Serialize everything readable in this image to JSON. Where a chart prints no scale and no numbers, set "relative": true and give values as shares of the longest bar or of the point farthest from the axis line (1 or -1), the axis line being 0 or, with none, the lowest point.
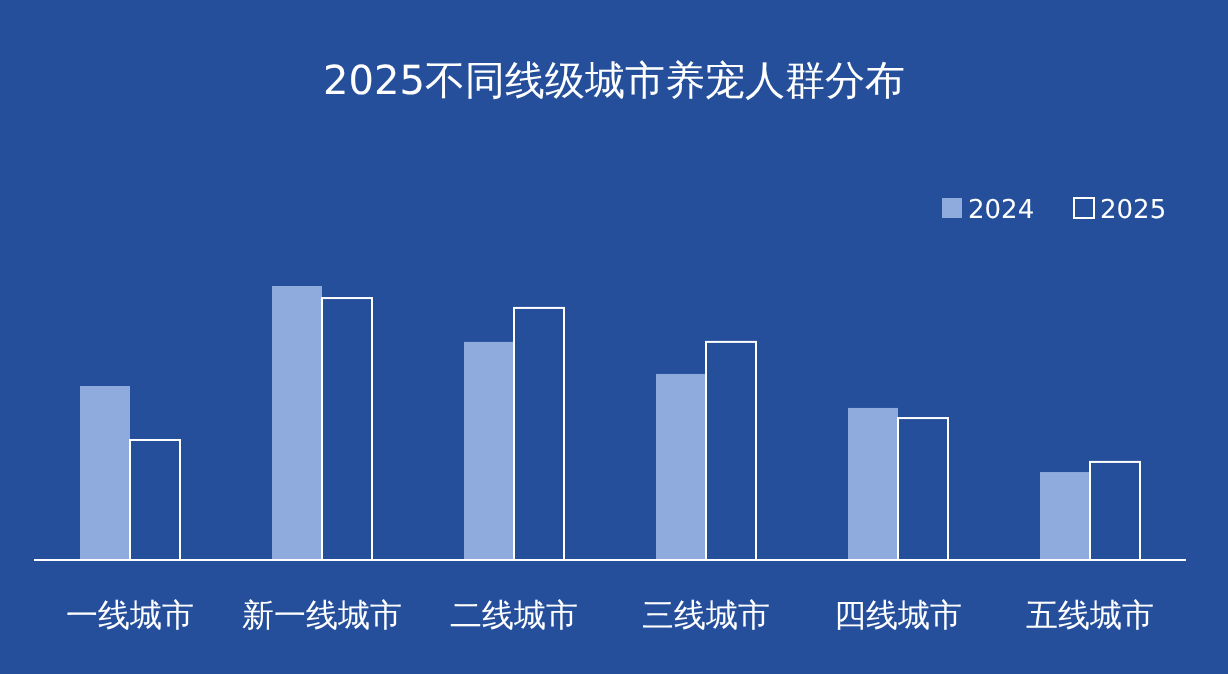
{
  "chart_data": {
    "type": "bar",
    "title": "2025不同线级城市养宠人群分布",
    "relative": true,
    "legend": "top right",
    "categories": [
      "一线城市",
      "新一线城市",
      "二线城市",
      "三线城市",
      "四线城市",
      "五线城市"
    ],
    "series": [
      {
        "name": "2024",
        "color": "#8faadc",
        "values": [
          0.635,
          1,
          0.796,
          0.679,
          0.555,
          0.321
        ]
      },
      {
        "name": "2025",
        "color": "#254f9b",
        "values": [
          0.438,
          0.956,
          0.92,
          0.796,
          0.518,
          0.358
        ]
      }
    ]
  }
}
